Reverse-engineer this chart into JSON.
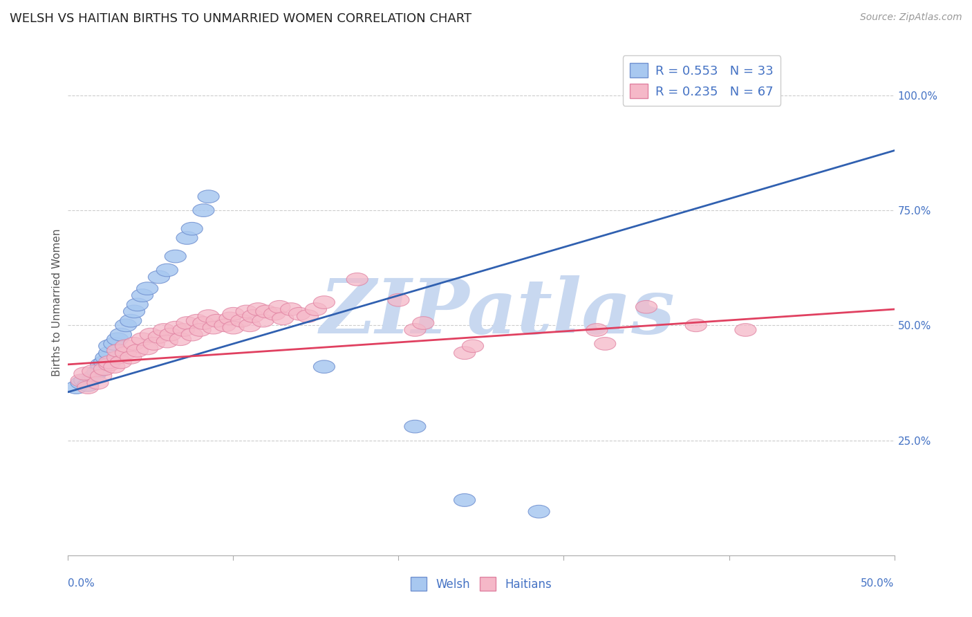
{
  "title": "WELSH VS HAITIAN BIRTHS TO UNMARRIED WOMEN CORRELATION CHART",
  "source": "Source: ZipAtlas.com",
  "ylabel": "Births to Unmarried Women",
  "xlim": [
    0.0,
    0.5
  ],
  "ylim": [
    0.0,
    1.1
  ],
  "xticks": [
    0.0,
    0.1,
    0.2,
    0.3,
    0.4,
    0.5
  ],
  "xticklabels": [
    "0.0%",
    "",
    "",
    "",
    "",
    "50.0%"
  ],
  "yticks": [
    0.25,
    0.5,
    0.75,
    1.0
  ],
  "yticklabels": [
    "25.0%",
    "50.0%",
    "75.0%",
    "100.0%"
  ],
  "blue_color": "#a8c8f0",
  "pink_color": "#f5b8c8",
  "blue_edge_color": "#7090d0",
  "pink_edge_color": "#e080a0",
  "blue_line_color": "#3060b0",
  "pink_line_color": "#e04060",
  "watermark": "ZIPatlas",
  "watermark_color": "#c8d8f0",
  "legend_r_welsh": "R = 0.553",
  "legend_n_welsh": "N = 33",
  "legend_r_haitian": "R = 0.235",
  "legend_n_haitian": "N = 67",
  "legend_label_welsh": "Welsh",
  "legend_label_haitian": "Haitians",
  "title_color": "#222222",
  "axis_tick_color": "#4472c4",
  "welsh_points": [
    [
      0.005,
      0.365
    ],
    [
      0.008,
      0.375
    ],
    [
      0.01,
      0.38
    ],
    [
      0.012,
      0.37
    ],
    [
      0.015,
      0.385
    ],
    [
      0.016,
      0.39
    ],
    [
      0.018,
      0.4
    ],
    [
      0.02,
      0.405
    ],
    [
      0.02,
      0.415
    ],
    [
      0.022,
      0.42
    ],
    [
      0.023,
      0.43
    ],
    [
      0.025,
      0.44
    ],
    [
      0.025,
      0.455
    ],
    [
      0.028,
      0.46
    ],
    [
      0.03,
      0.47
    ],
    [
      0.032,
      0.48
    ],
    [
      0.035,
      0.5
    ],
    [
      0.038,
      0.51
    ],
    [
      0.04,
      0.53
    ],
    [
      0.042,
      0.545
    ],
    [
      0.045,
      0.565
    ],
    [
      0.048,
      0.58
    ],
    [
      0.055,
      0.605
    ],
    [
      0.06,
      0.62
    ],
    [
      0.065,
      0.65
    ],
    [
      0.072,
      0.69
    ],
    [
      0.075,
      0.71
    ],
    [
      0.082,
      0.75
    ],
    [
      0.085,
      0.78
    ],
    [
      0.155,
      0.41
    ],
    [
      0.21,
      0.28
    ],
    [
      0.24,
      0.12
    ],
    [
      0.285,
      0.095
    ]
  ],
  "haitian_points": [
    [
      0.008,
      0.38
    ],
    [
      0.01,
      0.395
    ],
    [
      0.012,
      0.365
    ],
    [
      0.015,
      0.4
    ],
    [
      0.018,
      0.375
    ],
    [
      0.02,
      0.39
    ],
    [
      0.022,
      0.405
    ],
    [
      0.025,
      0.415
    ],
    [
      0.025,
      0.42
    ],
    [
      0.028,
      0.41
    ],
    [
      0.03,
      0.43
    ],
    [
      0.03,
      0.445
    ],
    [
      0.032,
      0.42
    ],
    [
      0.035,
      0.44
    ],
    [
      0.035,
      0.455
    ],
    [
      0.038,
      0.43
    ],
    [
      0.04,
      0.46
    ],
    [
      0.042,
      0.445
    ],
    [
      0.045,
      0.47
    ],
    [
      0.048,
      0.45
    ],
    [
      0.05,
      0.48
    ],
    [
      0.052,
      0.46
    ],
    [
      0.055,
      0.475
    ],
    [
      0.058,
      0.49
    ],
    [
      0.06,
      0.465
    ],
    [
      0.062,
      0.48
    ],
    [
      0.065,
      0.495
    ],
    [
      0.068,
      0.47
    ],
    [
      0.07,
      0.49
    ],
    [
      0.072,
      0.505
    ],
    [
      0.075,
      0.48
    ],
    [
      0.078,
      0.51
    ],
    [
      0.08,
      0.49
    ],
    [
      0.082,
      0.505
    ],
    [
      0.085,
      0.52
    ],
    [
      0.088,
      0.495
    ],
    [
      0.09,
      0.51
    ],
    [
      0.095,
      0.5
    ],
    [
      0.098,
      0.515
    ],
    [
      0.1,
      0.495
    ],
    [
      0.1,
      0.525
    ],
    [
      0.105,
      0.51
    ],
    [
      0.108,
      0.53
    ],
    [
      0.11,
      0.5
    ],
    [
      0.112,
      0.52
    ],
    [
      0.115,
      0.535
    ],
    [
      0.118,
      0.51
    ],
    [
      0.12,
      0.53
    ],
    [
      0.125,
      0.525
    ],
    [
      0.128,
      0.54
    ],
    [
      0.13,
      0.515
    ],
    [
      0.135,
      0.535
    ],
    [
      0.14,
      0.525
    ],
    [
      0.145,
      0.52
    ],
    [
      0.15,
      0.535
    ],
    [
      0.155,
      0.55
    ],
    [
      0.175,
      0.6
    ],
    [
      0.2,
      0.555
    ],
    [
      0.21,
      0.49
    ],
    [
      0.215,
      0.505
    ],
    [
      0.24,
      0.44
    ],
    [
      0.245,
      0.455
    ],
    [
      0.32,
      0.49
    ],
    [
      0.325,
      0.46
    ],
    [
      0.35,
      0.54
    ],
    [
      0.38,
      0.5
    ],
    [
      0.41,
      0.49
    ]
  ],
  "blue_trend_x": [
    0.0,
    0.5
  ],
  "blue_trend_y": [
    0.355,
    0.88
  ],
  "pink_trend_x": [
    0.0,
    0.5
  ],
  "pink_trend_y": [
    0.415,
    0.535
  ]
}
